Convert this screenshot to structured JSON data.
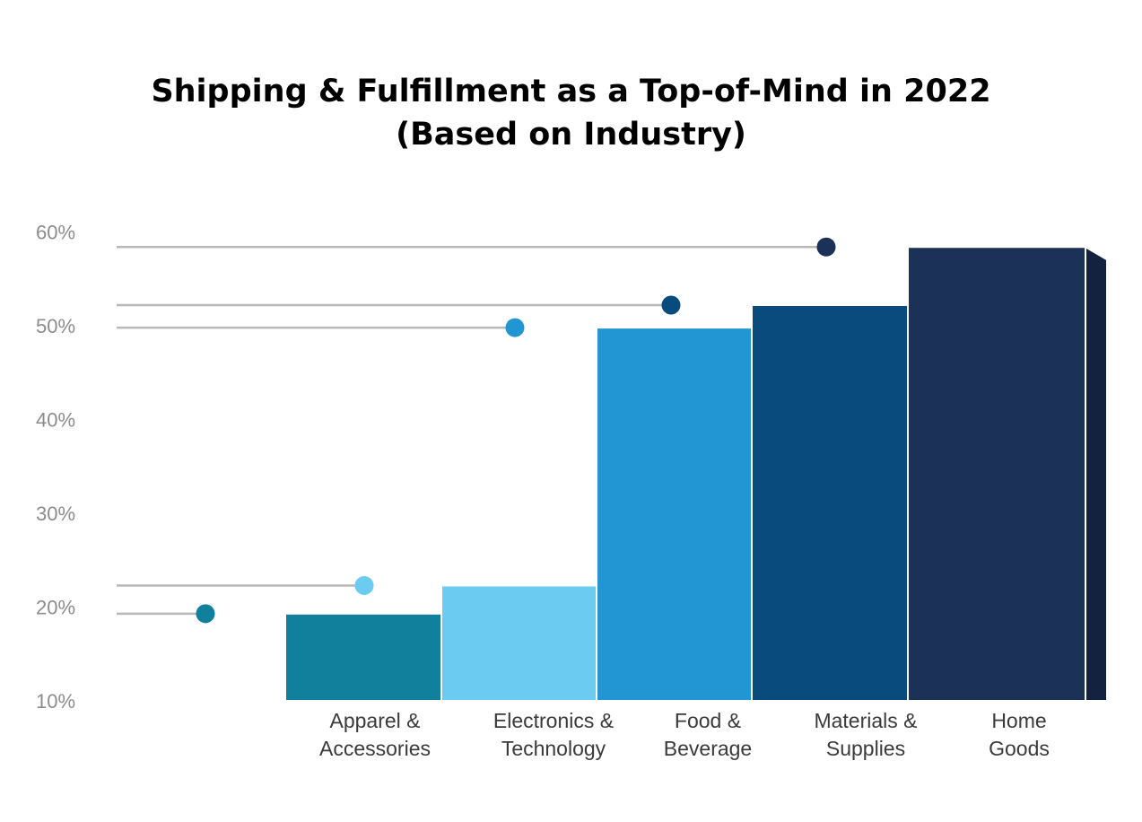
{
  "chart_data": {
    "type": "bar",
    "title": "Shipping & Fulfillment as a Top-of-Mind in 2022",
    "subtitle": "(Based on Industry)",
    "categories": [
      [
        "Apparel &",
        "Accessories"
      ],
      [
        "Electronics &",
        "Technology"
      ],
      [
        "Food &",
        "Beverage"
      ],
      [
        "Materials &",
        "Supplies"
      ],
      [
        "Home",
        "Goods"
      ]
    ],
    "values": [
      19.3,
      22.3,
      49.8,
      52.2,
      58.4
    ],
    "colors": [
      "#10809c",
      "#6ccbf0",
      "#2296d2",
      "#0a4b7e",
      "#1c3157"
    ],
    "side_colors": [
      "#1b5e76",
      "#4faacb",
      "#1a7fb2",
      "#123f69",
      "#13233f"
    ],
    "dot_colors": [
      "#10809c",
      "#6ccbf0",
      "#2296d2",
      "#0a4b7e",
      "#1c3157"
    ],
    "yticks": [
      "10%",
      "20%",
      "30%",
      "40%",
      "50%",
      "60%"
    ],
    "ylim": [
      10,
      60
    ],
    "grid": false,
    "legend": "none"
  }
}
